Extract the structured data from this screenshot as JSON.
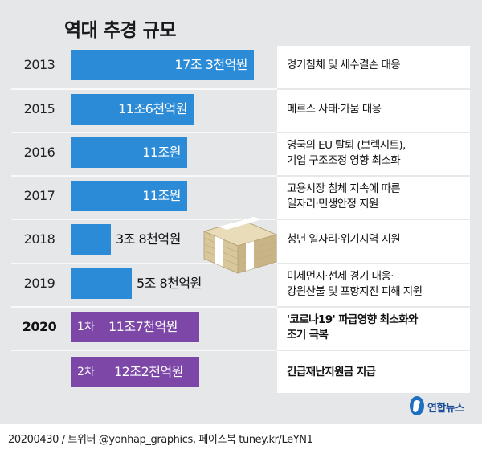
{
  "chart_data": {
    "type": "bar",
    "title": "역대 추경 규모",
    "unit": "원",
    "colors": {
      "blue": "#2c8bd6",
      "purple": "#7d47a8"
    },
    "rows": [
      {
        "year": "2013",
        "sub": "",
        "value_trillion": 17.3,
        "label": "17조 3천억원",
        "desc": [
          "경기침체 및 세수결손 대응"
        ],
        "color": "blue"
      },
      {
        "year": "2015",
        "sub": "",
        "value_trillion": 11.6,
        "label": "11조6천억원",
        "desc": [
          "메르스 사태·가뭄 대응"
        ],
        "color": "blue"
      },
      {
        "year": "2016",
        "sub": "",
        "value_trillion": 11.0,
        "label": "11조원",
        "desc": [
          "영국의 EU 탈퇴 (브렉시트),",
          "기업 구조조정 영향 최소화"
        ],
        "color": "blue"
      },
      {
        "year": "2017",
        "sub": "",
        "value_trillion": 11.0,
        "label": "11조원",
        "desc": [
          "고용시장 침체 지속에 따른",
          "일자리·민생안정 지원"
        ],
        "color": "blue"
      },
      {
        "year": "2018",
        "sub": "",
        "value_trillion": 3.8,
        "label": "3조 8천억원",
        "desc": [
          "청년 일자리·위기지역 지원"
        ],
        "color": "blue"
      },
      {
        "year": "2019",
        "sub": "",
        "value_trillion": 5.8,
        "label": "5조 8천억원",
        "desc": [
          "미세먼지·선제 경기 대응·",
          "강원산불 및 포항지진 피해 지원"
        ],
        "color": "blue"
      },
      {
        "year": "2020",
        "sub": "1차",
        "value_trillion": 11.7,
        "label": "11조7천억원",
        "desc": [
          "'코로나19' 파급영향 최소화와",
          "조기 극복"
        ],
        "color": "purple"
      },
      {
        "year": "",
        "sub": "2차",
        "value_trillion": 12.2,
        "label": "12조2천억원",
        "desc": [
          "긴급재난지원금 지급"
        ],
        "color": "purple"
      }
    ]
  },
  "footer": {
    "source": "20200430 / 트위터 @yonhap_graphics, 페이스북 tuney.kr/LeYN1",
    "logo_text": "연합뉴스"
  },
  "icons": [
    "money-stack-icon",
    "yonhap-logo-icon"
  ]
}
